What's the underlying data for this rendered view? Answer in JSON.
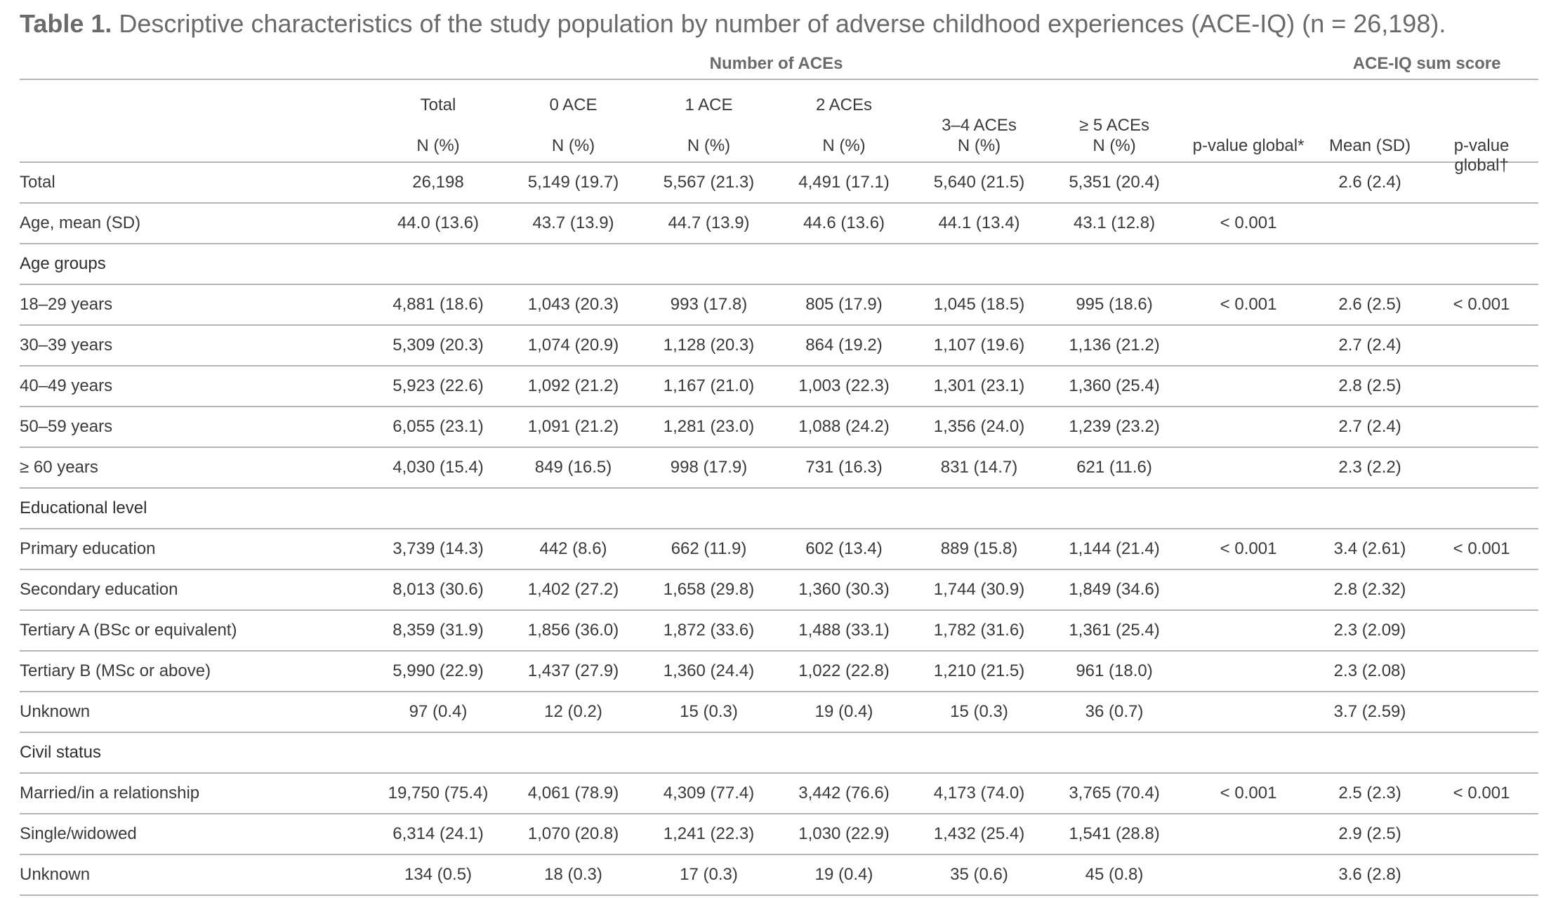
{
  "caption": {
    "label": "Table 1.",
    "text": " Descriptive characteristics of the study population by number of adverse childhood experiences (ACE-IQ) (n = 26,198)."
  },
  "header": {
    "group_aces": "Number of ACEs",
    "group_sum": "ACE-IQ sum score",
    "columns": [
      {
        "top": "Total",
        "mid": "",
        "bottom": "N (%)"
      },
      {
        "top": "0 ACE",
        "mid": "",
        "bottom": "N (%)"
      },
      {
        "top": "1 ACE",
        "mid": "",
        "bottom": "N (%)"
      },
      {
        "top": "2 ACEs",
        "mid": "",
        "bottom": "N (%)"
      },
      {
        "top": "",
        "mid": "3–4 ACEs",
        "bottom": "N (%)"
      },
      {
        "top": "",
        "mid": "≥ 5 ACEs",
        "bottom": "N (%)"
      },
      {
        "top": "",
        "mid": "",
        "bottom": "p-value global*"
      },
      {
        "top": "",
        "mid": "",
        "bottom": "Mean (SD)"
      },
      {
        "top": "",
        "mid": "",
        "bottom": "p-value global†"
      }
    ]
  },
  "rows": [
    {
      "label": "Total",
      "cells": [
        "26,198",
        "5,149 (19.7)",
        "5,567 (21.3)",
        "4,491 (17.1)",
        "5,640 (21.5)",
        "5,351 (20.4)",
        "",
        "2.6 (2.4)",
        ""
      ]
    },
    {
      "label": "Age, mean (SD)",
      "cells": [
        "44.0 (13.6)",
        "43.7 (13.9)",
        "44.7 (13.9)",
        "44.6 (13.6)",
        "44.1 (13.4)",
        "43.1 (12.8)",
        "< 0.001",
        "",
        ""
      ]
    },
    {
      "label": "Age groups",
      "cells": [
        "",
        "",
        "",
        "",
        "",
        "",
        "",
        "",
        ""
      ]
    },
    {
      "label": "18–29 years",
      "cells": [
        "4,881 (18.6)",
        "1,043 (20.3)",
        "993 (17.8)",
        "805 (17.9)",
        "1,045 (18.5)",
        "995 (18.6)",
        "< 0.001",
        "2.6 (2.5)",
        "< 0.001"
      ]
    },
    {
      "label": "30–39 years",
      "cells": [
        "5,309 (20.3)",
        "1,074 (20.9)",
        "1,128 (20.3)",
        "864 (19.2)",
        "1,107 (19.6)",
        "1,136 (21.2)",
        "",
        "2.7 (2.4)",
        ""
      ]
    },
    {
      "label": "40–49 years",
      "cells": [
        "5,923 (22.6)",
        "1,092 (21.2)",
        "1,167 (21.0)",
        "1,003 (22.3)",
        "1,301 (23.1)",
        "1,360 (25.4)",
        "",
        "2.8 (2.5)",
        ""
      ]
    },
    {
      "label": "50–59 years",
      "cells": [
        "6,055 (23.1)",
        "1,091 (21.2)",
        "1,281 (23.0)",
        "1,088 (24.2)",
        "1,356 (24.0)",
        "1,239 (23.2)",
        "",
        "2.7 (2.4)",
        ""
      ]
    },
    {
      "label": "≥ 60 years",
      "cells": [
        "4,030 (15.4)",
        "849 (16.5)",
        "998 (17.9)",
        "731 (16.3)",
        "831 (14.7)",
        "621 (11.6)",
        "",
        "2.3 (2.2)",
        ""
      ]
    },
    {
      "label": "Educational level",
      "cells": [
        "",
        "",
        "",
        "",
        "",
        "",
        "",
        "",
        ""
      ]
    },
    {
      "label": "Primary education",
      "cells": [
        "3,739 (14.3)",
        "442 (8.6)",
        "662 (11.9)",
        "602 (13.4)",
        "889 (15.8)",
        "1,144 (21.4)",
        "< 0.001",
        "3.4 (2.61)",
        "< 0.001"
      ]
    },
    {
      "label": "Secondary education",
      "cells": [
        "8,013 (30.6)",
        "1,402 (27.2)",
        "1,658 (29.8)",
        "1,360 (30.3)",
        "1,744 (30.9)",
        "1,849 (34.6)",
        "",
        "2.8 (2.32)",
        ""
      ]
    },
    {
      "label": "Tertiary A (BSc or equivalent)",
      "cells": [
        "8,359 (31.9)",
        "1,856 (36.0)",
        "1,872 (33.6)",
        "1,488 (33.1)",
        "1,782 (31.6)",
        "1,361 (25.4)",
        "",
        "2.3 (2.09)",
        ""
      ]
    },
    {
      "label": "Tertiary B (MSc or above)",
      "cells": [
        "5,990 (22.9)",
        "1,437 (27.9)",
        "1,360 (24.4)",
        "1,022 (22.8)",
        "1,210 (21.5)",
        "961 (18.0)",
        "",
        "2.3 (2.08)",
        ""
      ]
    },
    {
      "label": "Unknown",
      "cells": [
        "97 (0.4)",
        "12 (0.2)",
        "15 (0.3)",
        "19 (0.4)",
        "15 (0.3)",
        "36 (0.7)",
        "",
        "3.7 (2.59)",
        ""
      ]
    },
    {
      "label": "Civil status",
      "cells": [
        "",
        "",
        "",
        "",
        "",
        "",
        "",
        "",
        ""
      ]
    },
    {
      "label": "Married/in a relationship",
      "cells": [
        "19,750 (75.4)",
        "4,061 (78.9)",
        "4,309 (77.4)",
        "3,442 (76.6)",
        "4,173 (74.0)",
        "3,765 (70.4)",
        "< 0.001",
        "2.5 (2.3)",
        "< 0.001"
      ]
    },
    {
      "label": "Single/widowed",
      "cells": [
        "6,314 (24.1)",
        "1,070 (20.8)",
        "1,241 (22.3)",
        "1,030 (22.9)",
        "1,432 (25.4)",
        "1,541 (28.8)",
        "",
        "2.9 (2.5)",
        ""
      ]
    },
    {
      "label": "Unknown",
      "cells": [
        "134 (0.5)",
        "18 (0.3)",
        "17 (0.3)",
        "19 (0.4)",
        "35 (0.6)",
        "45 (0.8)",
        "",
        "3.6 (2.8)",
        ""
      ]
    }
  ]
}
